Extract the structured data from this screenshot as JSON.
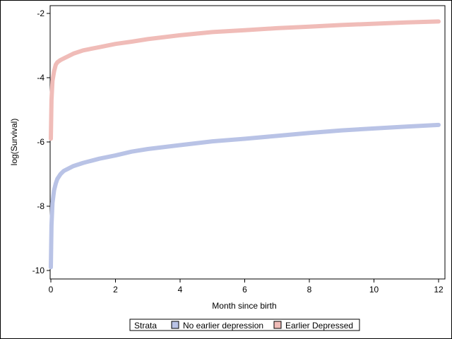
{
  "chart_data": {
    "type": "line",
    "title": "",
    "xlabel": "Month since birth",
    "ylabel": "log(Survival)",
    "xlim": [
      0,
      12
    ],
    "ylim": [
      -10,
      -2
    ],
    "xticks": [
      "0",
      "2",
      "4",
      "6",
      "8",
      "10",
      "12"
    ],
    "yticks": [
      "-2",
      "-4",
      "-6",
      "-8",
      "-10"
    ],
    "grid": false,
    "legend": {
      "title": "Strata",
      "placement": "bottom"
    },
    "series": [
      {
        "name": "No earlier depression",
        "color": "#b9c3e6",
        "x": [
          0,
          0.02,
          0.05,
          0.1,
          0.15,
          0.2,
          0.3,
          0.4,
          0.5,
          0.7,
          1.0,
          1.5,
          2.0,
          2.5,
          3.0,
          4.0,
          5.0,
          6.0,
          7.0,
          8.0,
          9.0,
          10.0,
          11.0,
          12.0
        ],
        "y": [
          -9.9,
          -8.6,
          -7.9,
          -7.5,
          -7.3,
          -7.15,
          -7.0,
          -6.9,
          -6.85,
          -6.75,
          -6.65,
          -6.52,
          -6.42,
          -6.3,
          -6.22,
          -6.1,
          -5.98,
          -5.9,
          -5.81,
          -5.72,
          -5.64,
          -5.58,
          -5.52,
          -5.47
        ]
      },
      {
        "name": "Earlier Depressed",
        "color": "#f0bcb8",
        "x": [
          0,
          0.02,
          0.05,
          0.1,
          0.15,
          0.2,
          0.3,
          0.4,
          0.5,
          0.7,
          1.0,
          1.5,
          2.0,
          2.5,
          3.0,
          4.0,
          5.0,
          6.0,
          7.0,
          8.0,
          9.0,
          10.0,
          11.0,
          12.0
        ],
        "y": [
          -5.9,
          -4.7,
          -4.1,
          -3.8,
          -3.6,
          -3.52,
          -3.45,
          -3.4,
          -3.35,
          -3.25,
          -3.15,
          -3.05,
          -2.95,
          -2.88,
          -2.8,
          -2.68,
          -2.58,
          -2.52,
          -2.46,
          -2.41,
          -2.36,
          -2.32,
          -2.28,
          -2.25
        ]
      }
    ]
  }
}
